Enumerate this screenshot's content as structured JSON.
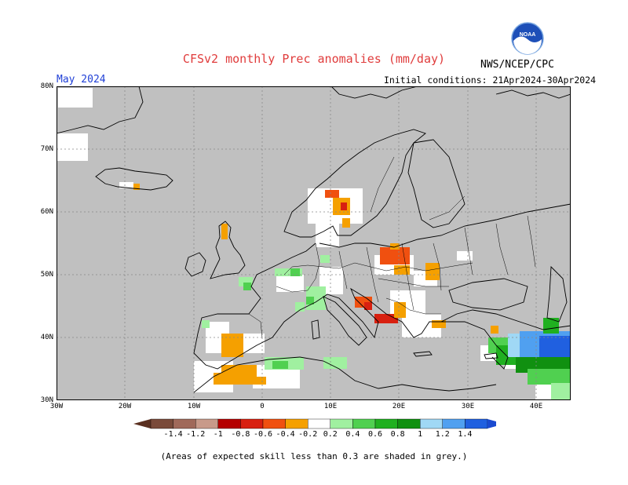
{
  "header": {
    "title": "CFSv2 monthly Prec anomalies (mm/day)",
    "agency": "NWS/NCEP/CPC",
    "month": "May 2024",
    "initial_conditions": "Initial conditions: 21Apr2024-30Apr2024",
    "logo_text": "NOAA"
  },
  "axes": {
    "lat_labels": [
      "80N",
      "70N",
      "60N",
      "50N",
      "40N",
      "30N"
    ],
    "lon_labels": [
      "30W",
      "20W",
      "10W",
      "0",
      "10E",
      "20E",
      "30E",
      "40E"
    ]
  },
  "colorbar": {
    "labels": [
      "-1.4",
      "-1.2",
      "-1",
      "-0.8",
      "-0.6",
      "-0.4",
      "-0.2",
      "0.2",
      "0.4",
      "0.6",
      "0.8",
      "1",
      "1.2",
      "1.4"
    ],
    "colors": [
      "#7a4a3a",
      "#a0695a",
      "#c89a8a",
      "#b40000",
      "#d82010",
      "#f05010",
      "#f5a000",
      "#ffffff",
      "#a0f0a0",
      "#50d050",
      "#20b020",
      "#109010",
      "#a0d8f5",
      "#50a0f0",
      "#2060e0"
    ]
  },
  "footnote": "(Areas of expected skill less than 0.3 are shaded in grey.)",
  "colors": {
    "grey_mask": "#c0c0c0",
    "title_red": "#e03c3c",
    "month_blue": "#1f3fd6"
  }
}
